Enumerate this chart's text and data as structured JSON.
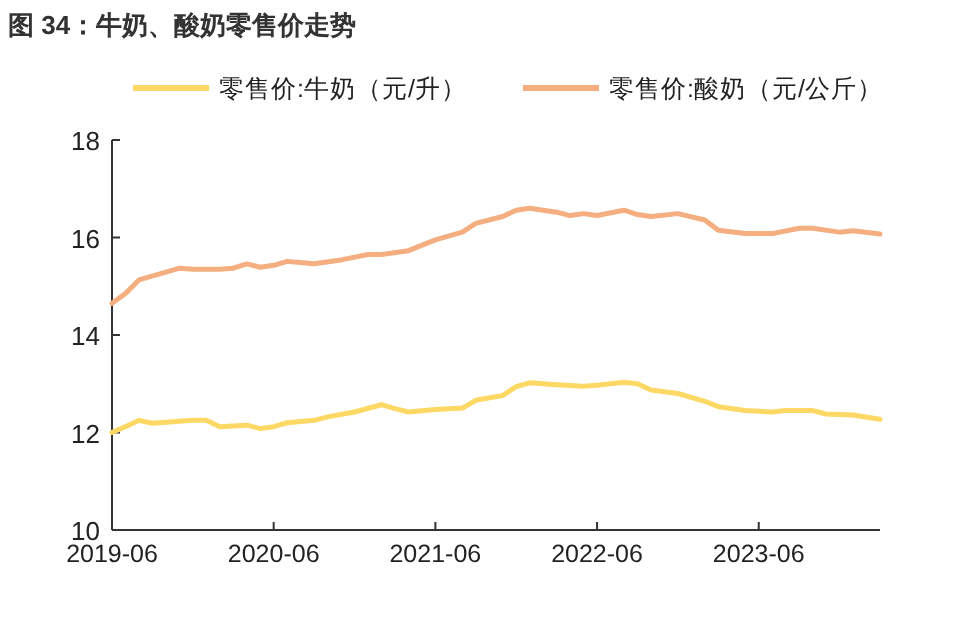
{
  "chart_data": {
    "type": "line",
    "title": "图 34：牛奶、酸奶零售价走势",
    "series": [
      {
        "name": "零售价:牛奶（元/升）",
        "color": "#fdd865",
        "x": [
          "2019-06",
          "2019-07",
          "2019-08",
          "2019-09",
          "2019-11",
          "2019-12",
          "2020-01",
          "2020-02",
          "2020-04",
          "2020-05",
          "2020-06",
          "2020-07",
          "2020-09",
          "2020-10",
          "2020-12",
          "2021-02",
          "2021-03",
          "2021-04",
          "2021-06",
          "2021-08",
          "2021-09",
          "2021-11",
          "2021-12",
          "2022-01",
          "2022-03",
          "2022-05",
          "2022-06",
          "2022-08",
          "2022-09",
          "2022-10",
          "2022-12",
          "2023-02",
          "2023-03",
          "2023-05",
          "2023-07",
          "2023-08",
          "2023-10",
          "2023-11",
          "2024-01",
          "2024-03"
        ],
        "values": [
          12.0,
          12.12,
          12.25,
          12.19,
          12.23,
          12.25,
          12.25,
          12.12,
          12.15,
          12.08,
          12.12,
          12.2,
          12.25,
          12.32,
          12.42,
          12.57,
          12.49,
          12.42,
          12.47,
          12.5,
          12.66,
          12.76,
          12.94,
          13.02,
          12.98,
          12.95,
          12.97,
          13.03,
          13.0,
          12.87,
          12.8,
          12.64,
          12.53,
          12.45,
          12.42,
          12.45,
          12.45,
          12.38,
          12.36,
          12.27
        ]
      },
      {
        "name": "零售价:酸奶（元/公斤）",
        "color": "#f4ae80",
        "x": [
          "2019-06",
          "2019-07",
          "2019-08",
          "2019-10",
          "2019-11",
          "2019-12",
          "2020-02",
          "2020-03",
          "2020-04",
          "2020-05",
          "2020-06",
          "2020-07",
          "2020-09",
          "2020-11",
          "2021-01",
          "2021-02",
          "2021-04",
          "2021-06",
          "2021-08",
          "2021-09",
          "2021-11",
          "2021-12",
          "2022-01",
          "2022-03",
          "2022-04",
          "2022-05",
          "2022-06",
          "2022-08",
          "2022-09",
          "2022-10",
          "2022-12",
          "2023-02",
          "2023-03",
          "2023-05",
          "2023-07",
          "2023-09",
          "2023-10",
          "2023-12",
          "2024-01",
          "2024-03"
        ],
        "values": [
          14.65,
          14.85,
          15.13,
          15.29,
          15.37,
          15.35,
          15.35,
          15.37,
          15.46,
          15.39,
          15.43,
          15.51,
          15.46,
          15.54,
          15.65,
          15.65,
          15.73,
          15.95,
          16.11,
          16.29,
          16.43,
          16.56,
          16.6,
          16.52,
          16.45,
          16.49,
          16.45,
          16.56,
          16.47,
          16.43,
          16.49,
          16.36,
          16.15,
          16.08,
          16.08,
          16.19,
          16.19,
          16.11,
          16.14,
          16.07
        ]
      }
    ],
    "xlim": [
      "2019-06",
      "2024-03"
    ],
    "xticks": [
      "2019-06",
      "2020-06",
      "2021-06",
      "2022-06",
      "2023-06"
    ],
    "ylim": [
      10,
      18
    ],
    "yticks": [
      10,
      12,
      14,
      16,
      18
    ],
    "legend": "top",
    "grid": false
  }
}
